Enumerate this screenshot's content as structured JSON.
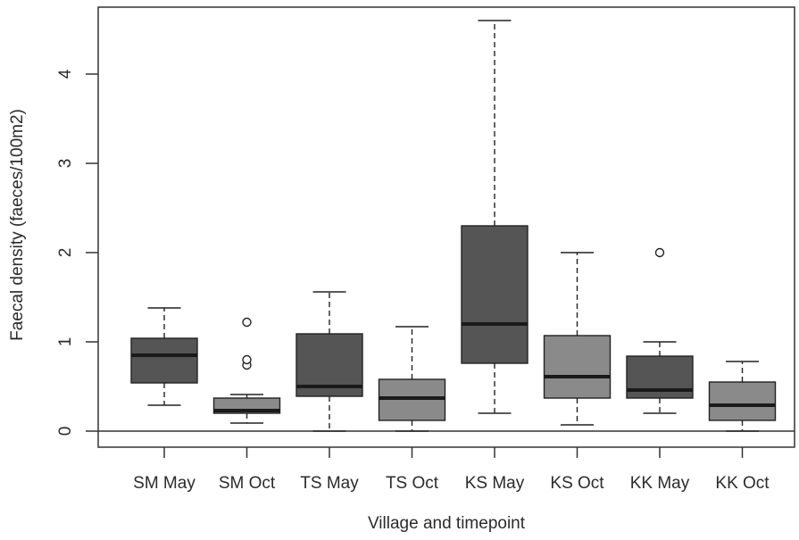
{
  "chart_data": {
    "type": "box",
    "xlabel": "Village and timepoint",
    "ylabel": "Faecal density (faeces/100m2)",
    "ylim": [
      -0.18,
      4.75
    ],
    "yticks": [
      0,
      1,
      2,
      3,
      4
    ],
    "reference_line_y": 0,
    "colors": {
      "may": "#555555",
      "oct": "#8a8a8a",
      "stroke": "#222222"
    },
    "boxes": [
      {
        "label": "SM May",
        "timepoint": "may",
        "whisker_low": 0.29,
        "q1": 0.54,
        "median": 0.85,
        "q3": 1.04,
        "whisker_high": 1.38,
        "outliers": []
      },
      {
        "label": "SM Oct",
        "timepoint": "oct",
        "whisker_low": 0.09,
        "q1": 0.2,
        "median": 0.23,
        "q3": 0.37,
        "whisker_high": 0.41,
        "outliers": [
          0.74,
          0.8,
          1.22
        ]
      },
      {
        "label": "TS May",
        "timepoint": "may",
        "whisker_low": 0.0,
        "q1": 0.39,
        "median": 0.5,
        "q3": 1.09,
        "whisker_high": 1.56,
        "outliers": []
      },
      {
        "label": "TS Oct",
        "timepoint": "oct",
        "whisker_low": 0.0,
        "q1": 0.12,
        "median": 0.37,
        "q3": 0.58,
        "whisker_high": 1.17,
        "outliers": []
      },
      {
        "label": "KS May",
        "timepoint": "may",
        "whisker_low": 0.2,
        "q1": 0.76,
        "median": 1.2,
        "q3": 2.3,
        "whisker_high": 4.6,
        "outliers": []
      },
      {
        "label": "KS Oct",
        "timepoint": "oct",
        "whisker_low": 0.07,
        "q1": 0.37,
        "median": 0.61,
        "q3": 1.07,
        "whisker_high": 2.0,
        "outliers": []
      },
      {
        "label": "KK May",
        "timepoint": "may",
        "whisker_low": 0.2,
        "q1": 0.37,
        "median": 0.46,
        "q3": 0.84,
        "whisker_high": 1.0,
        "outliers": [
          2.0
        ]
      },
      {
        "label": "KK Oct",
        "timepoint": "oct",
        "whisker_low": 0.0,
        "q1": 0.12,
        "median": 0.29,
        "q3": 0.55,
        "whisker_high": 0.78,
        "outliers": []
      }
    ]
  }
}
